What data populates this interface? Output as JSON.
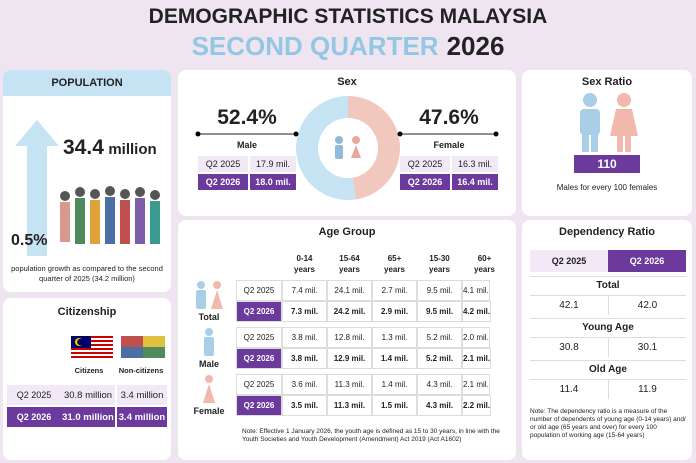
{
  "header": {
    "title": "DEMOGRAPHIC STATISTICS MALAYSIA",
    "subtitle_highlight": "SECOND QUARTER",
    "subtitle_year": "2026"
  },
  "population": {
    "title": "POPULATION",
    "total_value": "34.4",
    "total_unit": "million",
    "growth": "0.5%",
    "growth_note": "population growth as compared to the second quarter of 2025 (34.2 million)"
  },
  "citizenship": {
    "title": "Citizenship",
    "columns": [
      "Citizens",
      "Non-citizens"
    ],
    "rows": [
      [
        "Q2 2025",
        "30.8 million",
        "3.4 million"
      ],
      [
        "Q2 2026",
        "31.0 million",
        "3.4 million"
      ]
    ]
  },
  "sex": {
    "title": "Sex",
    "chart": {
      "type": "pie",
      "values": [
        52.4,
        47.6
      ],
      "value_labels": [
        "52.4%",
        "47.6%"
      ],
      "colors": [
        "#c6e3f4",
        "#f2c8be"
      ]
    },
    "groups": [
      {
        "name": "Male",
        "rows": [
          [
            "Q2 2025",
            "17.9 mil."
          ],
          [
            "Q2 2026",
            "18.0 mil."
          ]
        ]
      },
      {
        "name": "Female",
        "rows": [
          [
            "Q2 2025",
            "16.3 mil."
          ],
          [
            "Q2 2026",
            "16.4 mil."
          ]
        ]
      }
    ]
  },
  "sex_ratio": {
    "title": "Sex Ratio",
    "value": "110",
    "note": "Males for every 100 females"
  },
  "age_group": {
    "title": "Age Group",
    "columns": [
      [
        "0-14",
        "years"
      ],
      [
        "15-64",
        "years"
      ],
      [
        "65+",
        "years"
      ],
      [
        "15-30",
        "years"
      ],
      [
        "60+",
        "years"
      ]
    ],
    "groups": [
      {
        "name": "Total",
        "rows": [
          [
            "Q2 2025",
            "7.4 mil.",
            "24.1 mil.",
            "2.7 mil.",
            "9.5 mil.",
            "4.1 mil."
          ],
          [
            "Q2 2026",
            "7.3 mil.",
            "24.2 mil.",
            "2.9 mil.",
            "9.5 mil.",
            "4.2 mil."
          ]
        ]
      },
      {
        "name": "Male",
        "rows": [
          [
            "Q2 2025",
            "3.8 mil.",
            "12.8 mil.",
            "1.3 mil.",
            "5.2 mil.",
            "2.0 mil."
          ],
          [
            "Q2 2026",
            "3.8 mil.",
            "12.9 mil.",
            "1.4 mil.",
            "5.2 mil.",
            "2.1 mil."
          ]
        ]
      },
      {
        "name": "Female",
        "rows": [
          [
            "Q2 2025",
            "3.6 mil.",
            "11.3 mil.",
            "1.4 mil.",
            "4.3 mil.",
            "2.1 mil."
          ],
          [
            "Q2 2026",
            "3.5 mil.",
            "11.3 mil.",
            "1.5 mil.",
            "4.3 mil.",
            "2.2 mil."
          ]
        ]
      }
    ],
    "note": "Note: Effective 1 January 2026, the youth age is defined as 15 to 30 years, in line with the Youth Societies and Youth Development (Amendment) Act 2019 (Act A1602)"
  },
  "dependency_ratio": {
    "title": "Dependency Ratio",
    "columns": [
      "Q2 2025",
      "Q2 2026"
    ],
    "sections": [
      {
        "name": "Total",
        "values": [
          "42.1",
          "42.0"
        ]
      },
      {
        "name": "Young Age",
        "values": [
          "30.8",
          "30.1"
        ]
      },
      {
        "name": "Old Age",
        "values": [
          "11.4",
          "11.9"
        ]
      }
    ],
    "note": "Note: The dependency ratio is a measure of the number of dependents of young age (0-14 years) and/ or old age (65 years and over) for every 100 population of working age (15-64 years)"
  }
}
